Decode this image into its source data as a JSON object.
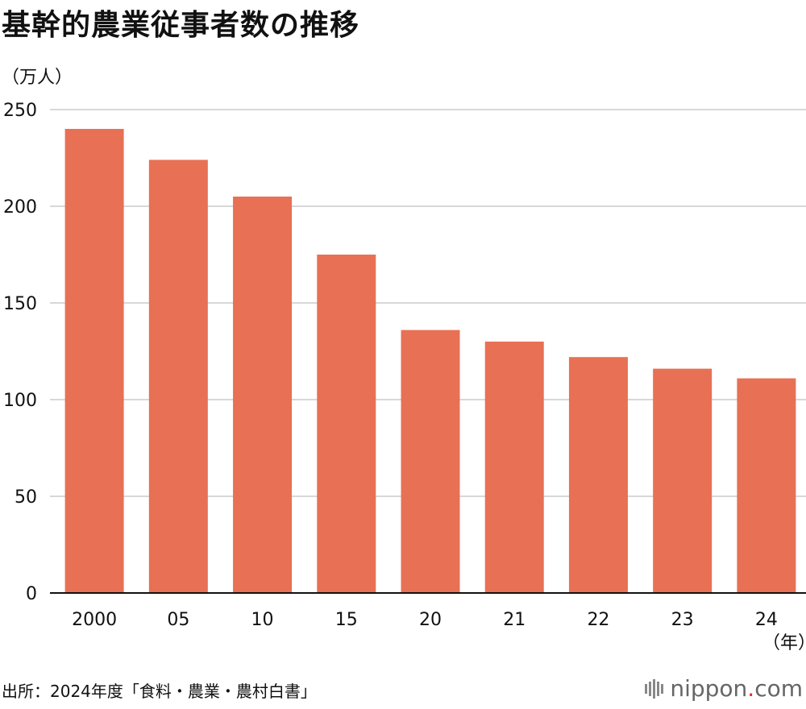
{
  "header": {
    "title": "基幹的農業従事者数の推移",
    "unit": "（万人）"
  },
  "footer": {
    "source": "出所：2024年度「食料・農業・農村白書」",
    "brand_name": "nippon",
    "brand_dot": ".",
    "brand_suffix": "com"
  },
  "colors": {
    "bar": "#e87054",
    "grid": "#cccccc",
    "axis": "#111111"
  },
  "chart_data": {
    "type": "bar",
    "title": "基幹的農業従事者数の推移",
    "ylabel": "（万人）",
    "xlabel": "（年）",
    "categories": [
      "2000",
      "05",
      "10",
      "15",
      "20",
      "21",
      "22",
      "23",
      "24"
    ],
    "values": [
      240,
      224,
      205,
      175,
      136,
      130,
      122,
      116,
      111
    ],
    "ylim": [
      0,
      250
    ],
    "yticks": [
      0,
      50,
      100,
      150,
      200,
      250
    ],
    "grid": true,
    "legend": "none"
  }
}
